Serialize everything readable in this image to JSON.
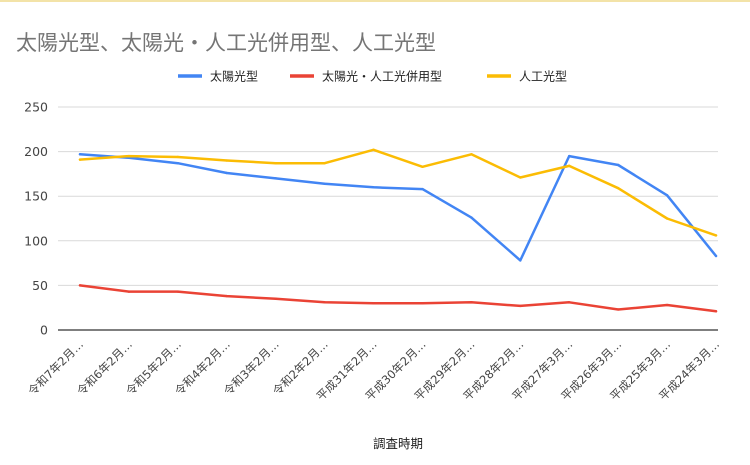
{
  "chart_data": {
    "type": "line",
    "title": "太陽光型、太陽光・人工光併用型、人工光型",
    "xlabel": "調査時期",
    "ylabel": "",
    "ylim": [
      0,
      250
    ],
    "yticks": [
      "0",
      "50",
      "100",
      "150",
      "200",
      "250"
    ],
    "grid": true,
    "legend_position": "top",
    "categories": [
      "令和7年2月…",
      "令和6年2月…",
      "令和5年2月…",
      "令和4年2月…",
      "令和3年2月…",
      "令和2年2月…",
      "平成31年2月…",
      "平成30年2月…",
      "平成29年2月…",
      "平成28年2月…",
      "平成27年3月…",
      "平成26年3月…",
      "平成25年3月…",
      "平成24年3月…"
    ],
    "series": [
      {
        "name": "太陽光型",
        "color": "#4285f4",
        "values": [
          197,
          193,
          187,
          176,
          170,
          164,
          160,
          158,
          126,
          78,
          195,
          185,
          151,
          83
        ]
      },
      {
        "name": "太陽光・人工光併用型",
        "color": "#ea4335",
        "values": [
          50,
          43,
          43,
          38,
          35,
          31,
          30,
          30,
          31,
          27,
          31,
          23,
          28,
          21
        ]
      },
      {
        "name": "人工光型",
        "color": "#fbbc04",
        "values": [
          191,
          195,
          194,
          190,
          187,
          187,
          202,
          183,
          197,
          171,
          184,
          159,
          125,
          106
        ]
      }
    ]
  }
}
